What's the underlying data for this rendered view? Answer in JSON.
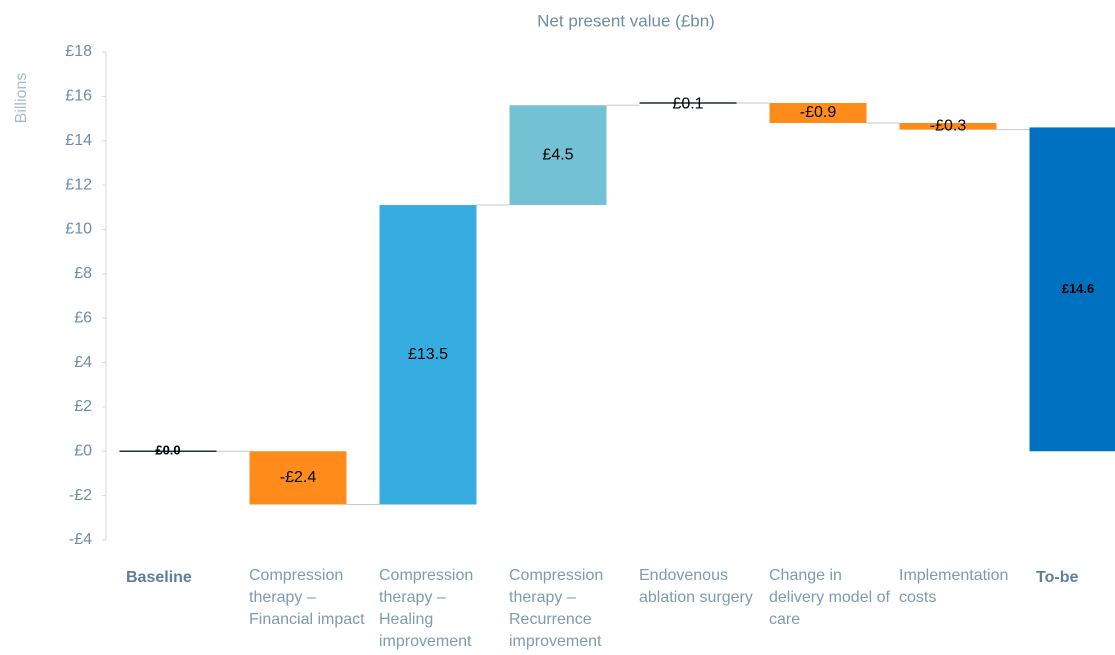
{
  "chart_data": {
    "type": "waterfall",
    "title": "Net present value (£bn)",
    "y_label": "Billions",
    "categories": [
      "Baseline",
      "Compression therapy – Financial impact",
      "Compression therapy – Healing improvement",
      "Compression therapy – Recurrence improvement",
      "Endovenous ablation surgery",
      "Change in delivery model of care",
      "Implementation costs",
      "To-be"
    ],
    "values": [
      0.0,
      -2.4,
      13.5,
      4.5,
      0.1,
      -0.9,
      -0.3,
      14.6
    ],
    "value_labels": [
      "£0.0",
      "-£2.4",
      "£13.5",
      "£4.5",
      "£0.1",
      "-£0.9",
      "-£0.3",
      "£14.6"
    ],
    "colors": [
      "#1f2d3d",
      "#ff8c1a",
      "#35ade0",
      "#75c1d4",
      "#1f2d3d",
      "#ff8c1a",
      "#ff8c1a",
      "#0070c0"
    ],
    "totals": [
      true,
      false,
      false,
      false,
      false,
      false,
      false,
      true
    ],
    "ylim": [
      -4,
      18
    ],
    "yticks": [
      {
        "value": -4,
        "label": "-£4"
      },
      {
        "value": -2,
        "label": "-£2"
      },
      {
        "value": 0,
        "label": "£0"
      },
      {
        "value": 2,
        "label": "£2"
      },
      {
        "value": 4,
        "label": "£4"
      },
      {
        "value": 6,
        "label": "£6"
      },
      {
        "value": 8,
        "label": "£8"
      },
      {
        "value": 10,
        "label": "£10"
      },
      {
        "value": 12,
        "label": "£12"
      },
      {
        "value": 14,
        "label": "£14"
      },
      {
        "value": 16,
        "label": "£16"
      },
      {
        "value": 18,
        "label": "£18"
      }
    ]
  }
}
